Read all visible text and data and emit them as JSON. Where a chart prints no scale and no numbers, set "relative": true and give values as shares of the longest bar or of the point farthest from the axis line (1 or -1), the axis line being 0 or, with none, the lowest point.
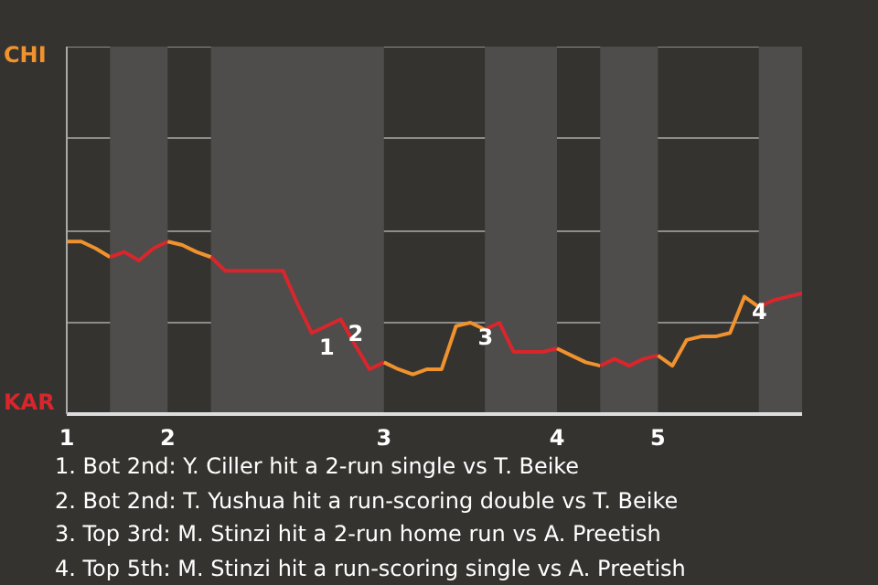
{
  "chart_data": {
    "type": "line",
    "relative": true,
    "categories": [
      "1",
      null,
      null,
      null,
      null,
      null,
      null,
      "2",
      null,
      null,
      null,
      null,
      null,
      null,
      null,
      null,
      null,
      null,
      null,
      null,
      null,
      null,
      "3",
      null,
      null,
      null,
      null,
      null,
      null,
      null,
      null,
      null,
      null,
      null,
      "4",
      null,
      null,
      null,
      null,
      null,
      null,
      "5",
      null,
      null,
      null,
      null,
      null,
      null,
      null,
      null,
      null,
      null
    ],
    "line_style": "solid",
    "ref_lines": [
      {
        "axis": "y",
        "value": 0.53,
        "color": "#8c8c8c"
      },
      {
        "axis": "y",
        "value": 1.06,
        "color": "#8c8c8c"
      },
      {
        "axis": "y",
        "value": 1.6,
        "color": "#8c8c8c"
      },
      {
        "axis": "y",
        "value": 2.13,
        "color": "#8c8c8c"
      }
    ],
    "series": [
      {
        "color": "#f0922e",
        "values": [
          1,
          1,
          0.96,
          0.91,
          null,
          null,
          null,
          null,
          null,
          null,
          null,
          null,
          null,
          null,
          null,
          null,
          null,
          null,
          null,
          null,
          null,
          null,
          null,
          null,
          null,
          null,
          null,
          null,
          null,
          null,
          null,
          null,
          null,
          null,
          null,
          null,
          null,
          null,
          null,
          null,
          null,
          null,
          null,
          null,
          null,
          null,
          null,
          null,
          null,
          null,
          null,
          null
        ]
      },
      {
        "color": "#d9262c",
        "values": [
          null,
          null,
          null,
          0.91,
          0.94,
          0.89,
          0.96,
          1,
          null,
          null,
          null,
          null,
          null,
          null,
          null,
          null,
          null,
          null,
          null,
          null,
          null,
          null,
          null,
          null,
          null,
          null,
          null,
          null,
          null,
          null,
          null,
          null,
          null,
          null,
          null,
          null,
          null,
          null,
          null,
          null,
          null,
          null,
          null,
          null,
          null,
          null,
          null,
          null,
          null,
          null,
          null,
          null
        ]
      },
      {
        "color": "#f0922e",
        "values": [
          null,
          null,
          null,
          null,
          null,
          null,
          null,
          1,
          0.98,
          0.94,
          0.91,
          null,
          null,
          null,
          null,
          null,
          null,
          null,
          null,
          null,
          null,
          null,
          null,
          null,
          null,
          null,
          null,
          null,
          null,
          null,
          null,
          null,
          null,
          null,
          null,
          null,
          null,
          null,
          null,
          null,
          null,
          null,
          null,
          null,
          null,
          null,
          null,
          null,
          null,
          null,
          null,
          null
        ]
      },
      {
        "color": "#d9262c",
        "values": [
          null,
          null,
          null,
          null,
          null,
          null,
          null,
          null,
          null,
          null,
          0.91,
          0.83,
          0.83,
          0.83,
          0.83,
          0.83,
          0.64,
          0.47,
          0.51,
          0.55,
          0.4,
          0.26,
          0.3,
          null,
          null,
          null,
          null,
          null,
          null,
          null,
          null,
          null,
          null,
          null,
          null,
          null,
          null,
          null,
          null,
          null,
          null,
          null,
          null,
          null,
          null,
          null,
          null,
          null,
          null,
          null,
          null,
          null
        ]
      },
      {
        "color": "#f0922e",
        "values": [
          null,
          null,
          null,
          null,
          null,
          null,
          null,
          null,
          null,
          null,
          null,
          null,
          null,
          null,
          null,
          null,
          null,
          null,
          null,
          null,
          null,
          null,
          0.3,
          0.26,
          0.23,
          0.26,
          0.26,
          0.51,
          0.53,
          0.49,
          null,
          null,
          null,
          null,
          null,
          null,
          null,
          null,
          null,
          null,
          null,
          null,
          null,
          null,
          null,
          null,
          null,
          null,
          null,
          null,
          null,
          null
        ]
      },
      {
        "color": "#d9262c",
        "values": [
          null,
          null,
          null,
          null,
          null,
          null,
          null,
          null,
          null,
          null,
          null,
          null,
          null,
          null,
          null,
          null,
          null,
          null,
          null,
          null,
          null,
          null,
          null,
          null,
          null,
          null,
          null,
          null,
          null,
          0.49,
          0.53,
          0.36,
          0.36,
          0.36,
          0.38,
          null,
          null,
          null,
          null,
          null,
          null,
          null,
          null,
          null,
          null,
          null,
          null,
          null,
          null,
          null,
          null,
          null
        ]
      },
      {
        "color": "#f0922e",
        "values": [
          null,
          null,
          null,
          null,
          null,
          null,
          null,
          null,
          null,
          null,
          null,
          null,
          null,
          null,
          null,
          null,
          null,
          null,
          null,
          null,
          null,
          null,
          null,
          null,
          null,
          null,
          null,
          null,
          null,
          null,
          null,
          null,
          null,
          null,
          0.38,
          0.34,
          0.3,
          0.28,
          null,
          null,
          null,
          null,
          null,
          null,
          null,
          null,
          null,
          null,
          null,
          null,
          null,
          null
        ]
      },
      {
        "color": "#d9262c",
        "values": [
          null,
          null,
          null,
          null,
          null,
          null,
          null,
          null,
          null,
          null,
          null,
          null,
          null,
          null,
          null,
          null,
          null,
          null,
          null,
          null,
          null,
          null,
          null,
          null,
          null,
          null,
          null,
          null,
          null,
          null,
          null,
          null,
          null,
          null,
          null,
          null,
          null,
          0.28,
          0.32,
          0.28,
          0.32,
          0.34,
          null,
          null,
          null,
          null,
          null,
          null,
          null,
          null,
          null,
          null
        ]
      },
      {
        "color": "#f0922e",
        "values": [
          null,
          null,
          null,
          null,
          null,
          null,
          null,
          null,
          null,
          null,
          null,
          null,
          null,
          null,
          null,
          null,
          null,
          null,
          null,
          null,
          null,
          null,
          null,
          null,
          null,
          null,
          null,
          null,
          null,
          null,
          null,
          null,
          null,
          null,
          null,
          null,
          null,
          null,
          null,
          null,
          null,
          0.34,
          0.28,
          0.43,
          0.45,
          0.45,
          0.47,
          0.68,
          0.62,
          null,
          null,
          null
        ]
      },
      {
        "color": "#d9262c",
        "values": [
          null,
          null,
          null,
          null,
          null,
          null,
          null,
          null,
          null,
          null,
          null,
          null,
          null,
          null,
          null,
          null,
          null,
          null,
          null,
          null,
          null,
          null,
          null,
          null,
          null,
          null,
          null,
          null,
          null,
          null,
          null,
          null,
          null,
          null,
          null,
          null,
          null,
          null,
          null,
          null,
          null,
          null,
          null,
          null,
          null,
          null,
          null,
          null,
          0.62,
          0.66,
          0.68,
          0.7
        ]
      }
    ],
    "annotations": [
      "CHI",
      "KAR",
      {
        "text": "1",
        "y": 0.47
      },
      {
        "text": "2",
        "y": 0.55
      },
      {
        "text": "3",
        "y": 0.53
      },
      {
        "text": "4",
        "y": 0.68
      },
      "1. Bot 2nd: Y. Ciller hit a 2-run single vs T. Beike",
      "2. Bot 2nd: T. Yushua hit a run-scoring double vs T. Beike",
      "3. Top 3rd: M. Stinzi hit a 2-run home run vs A. Preetish",
      "4. Top 5th: M. Stinzi hit a run-scoring single vs A. Preetish"
    ]
  }
}
